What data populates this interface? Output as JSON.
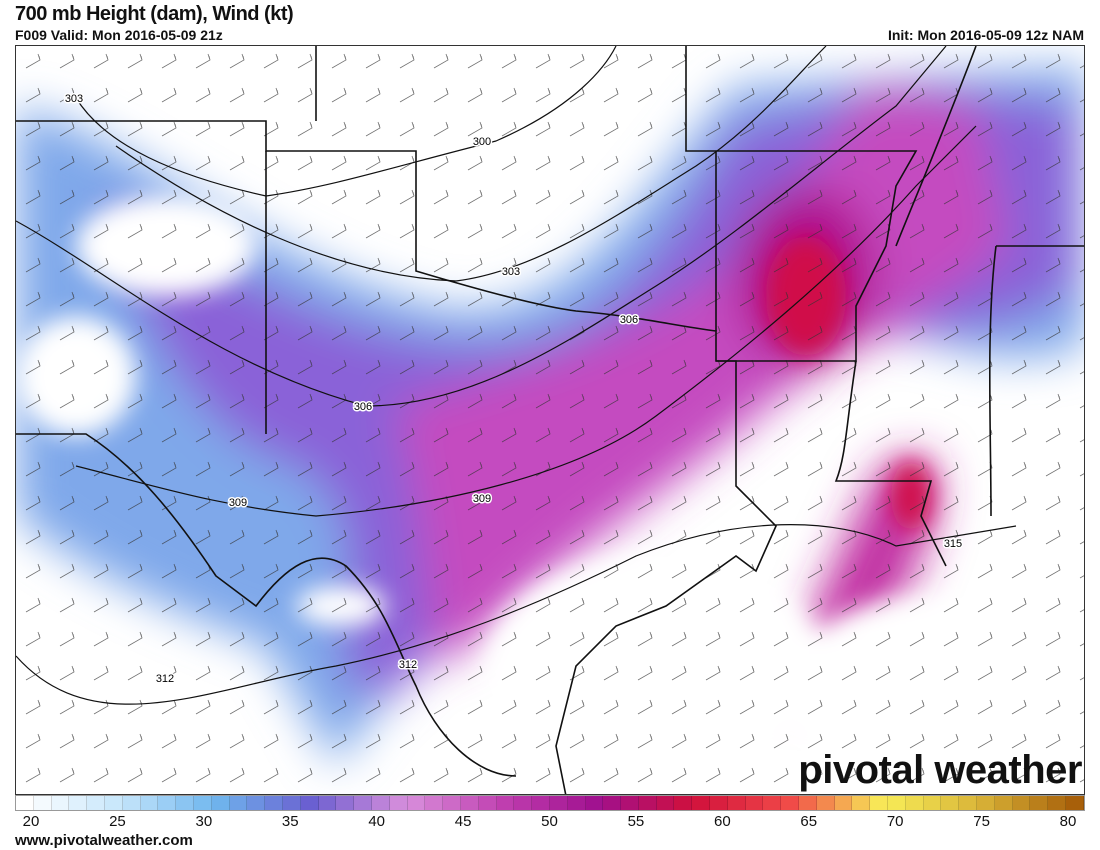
{
  "header": {
    "title": "700 mb Height (dam), Wind (kt)",
    "valid": "F009 Valid: Mon 2016-05-09 21z",
    "init": "Init: Mon 2016-05-09 12z NAM"
  },
  "contour_labels": [
    {
      "text": "303",
      "pos": [
        73,
        97
      ]
    },
    {
      "text": "300",
      "pos": [
        481,
        140
      ]
    },
    {
      "text": "303",
      "pos": [
        510,
        270
      ]
    },
    {
      "text": "306",
      "pos": [
        628,
        318
      ]
    },
    {
      "text": "306",
      "pos": [
        362,
        405
      ]
    },
    {
      "text": "309",
      "pos": [
        237,
        501
      ]
    },
    {
      "text": "309",
      "pos": [
        481,
        497
      ]
    },
    {
      "text": "312",
      "pos": [
        164,
        677
      ]
    },
    {
      "text": "312",
      "pos": [
        407,
        663
      ]
    },
    {
      "text": "315",
      "pos": [
        952,
        542
      ]
    }
  ],
  "colorbar": {
    "min": 20,
    "max": 80,
    "ticks": [
      "20",
      "25",
      "30",
      "35",
      "40",
      "45",
      "50",
      "55",
      "60",
      "65",
      "70",
      "75",
      "80"
    ],
    "stops": [
      "#ffffff",
      "#c6e6fb",
      "#6fb6ee",
      "#6a5fd0",
      "#d98fdc",
      "#c040b0",
      "#a0108f",
      "#d0103c",
      "#f04848",
      "#f8ee58",
      "#d9b438",
      "#a8600a"
    ]
  },
  "footer": {
    "url": "www.pivotalweather.com",
    "logo": "pivotal weather"
  }
}
